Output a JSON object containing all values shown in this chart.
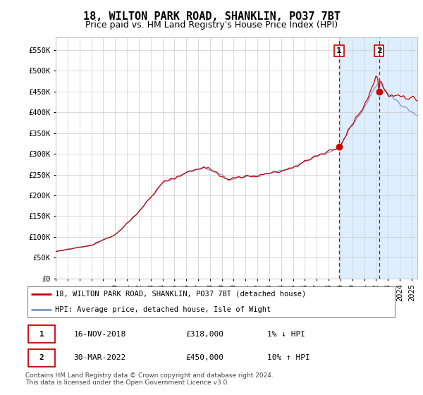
{
  "title": "18, WILTON PARK ROAD, SHANKLIN, PO37 7BT",
  "subtitle": "Price paid vs. HM Land Registry's House Price Index (HPI)",
  "ylim": [
    0,
    580000
  ],
  "yticks": [
    0,
    50000,
    100000,
    150000,
    200000,
    250000,
    300000,
    350000,
    400000,
    450000,
    500000,
    550000
  ],
  "xlim_start": 1995.0,
  "xlim_end": 2025.5,
  "transaction1": {
    "date_num": 2018.88,
    "value": 318000,
    "label": "1"
  },
  "transaction2": {
    "date_num": 2022.25,
    "value": 450000,
    "label": "2"
  },
  "shade_start": 2018.88,
  "shade_end": 2025.5,
  "line_color_hpi": "#7799cc",
  "line_color_price": "#cc0000",
  "marker_color": "#cc0000",
  "grid_color": "#cccccc",
  "shade_color": "#ddeeff",
  "vline_color": "#cc0000",
  "annotation1_label": "1",
  "annotation2_label": "2",
  "legend_line1": "18, WILTON PARK ROAD, SHANKLIN, PO37 7BT (detached house)",
  "legend_line2": "HPI: Average price, detached house, Isle of Wight",
  "table_row1": [
    "1",
    "16-NOV-2018",
    "£318,000",
    "1% ↓ HPI"
  ],
  "table_row2": [
    "2",
    "30-MAR-2022",
    "£450,000",
    "10% ↑ HPI"
  ],
  "footer": "Contains HM Land Registry data © Crown copyright and database right 2024.\nThis data is licensed under the Open Government Licence v3.0.",
  "title_fontsize": 11,
  "subtitle_fontsize": 9,
  "tick_fontsize": 7.5
}
